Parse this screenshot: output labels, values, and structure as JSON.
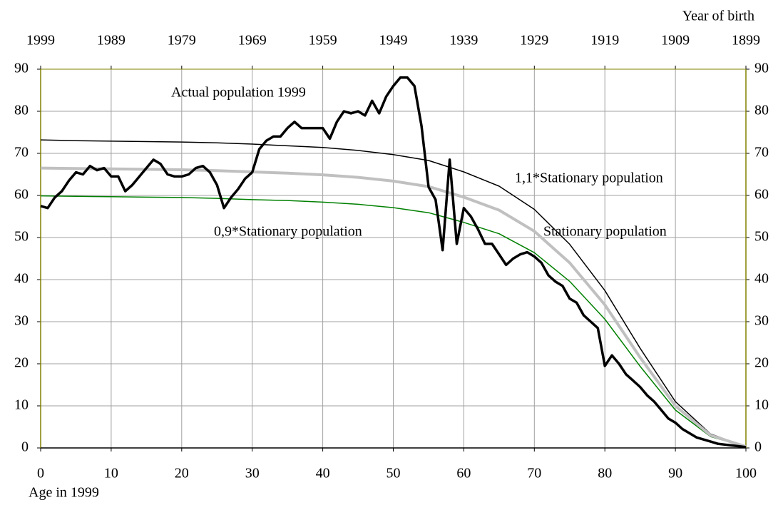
{
  "chart_data": {
    "type": "line",
    "x_label": "Age in 1999",
    "xlim": [
      0,
      100
    ],
    "ylim": [
      0,
      90
    ],
    "xticks": [
      0,
      10,
      20,
      30,
      40,
      50,
      60,
      70,
      80,
      90,
      100
    ],
    "yticks": [
      0,
      10,
      20,
      30,
      40,
      50,
      60,
      70,
      80,
      90
    ],
    "top_axis": {
      "title": "Year of birth",
      "ticks": [
        {
          "value": 0,
          "label": "1999"
        },
        {
          "value": 10,
          "label": "1989"
        },
        {
          "value": 20,
          "label": "1979"
        },
        {
          "value": 30,
          "label": "1969"
        },
        {
          "value": 40,
          "label": "1959"
        },
        {
          "value": 50,
          "label": "1949"
        },
        {
          "value": 60,
          "label": "1939"
        },
        {
          "value": 70,
          "label": "1929"
        },
        {
          "value": 80,
          "label": "1919"
        },
        {
          "value": 90,
          "label": "1909"
        },
        {
          "value": 100,
          "label": "1899"
        }
      ]
    },
    "grid": true,
    "annotations": [
      "Actual population 1999",
      "1,1*Stationary population",
      "0,9*Stationary population",
      "Stationary population"
    ],
    "series": [
      {
        "name": "1,1*Stationary population",
        "color": "#000000",
        "width": 1.5,
        "x": [
          0,
          5,
          10,
          15,
          20,
          25,
          30,
          35,
          40,
          45,
          50,
          55,
          60,
          65,
          70,
          75,
          80,
          85,
          90,
          95,
          100
        ],
        "values": [
          73.2,
          73.0,
          72.9,
          72.8,
          72.7,
          72.5,
          72.2,
          71.8,
          71.4,
          70.7,
          69.7,
          68.3,
          65.6,
          62.2,
          56.7,
          48.4,
          37.4,
          23.7,
          11.0,
          3.3,
          0.3
        ]
      },
      {
        "name": "0,9*Stationary population",
        "color": "#008000",
        "width": 1.5,
        "x": [
          0,
          5,
          10,
          15,
          20,
          25,
          30,
          35,
          40,
          45,
          50,
          55,
          60,
          65,
          70,
          75,
          80,
          85,
          90,
          95,
          100
        ],
        "values": [
          59.9,
          59.8,
          59.7,
          59.6,
          59.5,
          59.3,
          59.0,
          58.8,
          58.4,
          57.9,
          57.1,
          55.9,
          53.6,
          50.9,
          46.4,
          39.6,
          30.6,
          19.4,
          9.0,
          2.7,
          0.3
        ]
      },
      {
        "name": "Stationary population",
        "color": "#c0c0c0",
        "width": 4,
        "x": [
          0,
          5,
          10,
          15,
          20,
          25,
          30,
          35,
          40,
          45,
          50,
          55,
          60,
          65,
          70,
          75,
          80,
          85,
          90,
          95,
          100
        ],
        "values": [
          66.5,
          66.4,
          66.3,
          66.2,
          66.1,
          65.9,
          65.6,
          65.3,
          64.9,
          64.3,
          63.4,
          62.1,
          59.6,
          56.5,
          51.5,
          44.0,
          34.0,
          21.5,
          10.0,
          3.0,
          0.3
        ]
      },
      {
        "name": "Actual population 1999",
        "color": "#000000",
        "width": 3.5,
        "x": [
          0,
          1,
          2,
          3,
          4,
          5,
          6,
          7,
          8,
          9,
          10,
          11,
          12,
          13,
          14,
          15,
          16,
          17,
          18,
          19,
          20,
          21,
          22,
          23,
          24,
          25,
          26,
          27,
          28,
          29,
          30,
          31,
          32,
          33,
          34,
          35,
          36,
          37,
          38,
          39,
          40,
          41,
          42,
          43,
          44,
          45,
          46,
          47,
          48,
          49,
          50,
          51,
          52,
          53,
          54,
          55,
          56,
          57,
          58,
          59,
          60,
          61,
          62,
          63,
          64,
          65,
          66,
          67,
          68,
          69,
          70,
          71,
          72,
          73,
          74,
          75,
          76,
          77,
          78,
          79,
          80,
          81,
          82,
          83,
          84,
          85,
          86,
          87,
          88,
          89,
          90,
          91,
          92,
          93,
          94,
          95,
          96,
          97,
          98,
          99,
          100
        ],
        "values": [
          57.5,
          57,
          59.5,
          61,
          63.5,
          65.5,
          65,
          67,
          66,
          66.5,
          64.5,
          64.5,
          61,
          62.5,
          64.5,
          66.5,
          68.5,
          67.5,
          65,
          64.5,
          64.5,
          65,
          66.5,
          67,
          65.5,
          62.5,
          57,
          59.5,
          61.5,
          64,
          65.5,
          71,
          73,
          74,
          74,
          76,
          77.5,
          76,
          76,
          76,
          76,
          73.5,
          77.5,
          80,
          79.5,
          80,
          79,
          82.5,
          79.5,
          83.5,
          86,
          88,
          88,
          86,
          76.5,
          62,
          59,
          47,
          68.5,
          48.5,
          57,
          55,
          52,
          48.5,
          48.5,
          46,
          43.5,
          45,
          46,
          46.5,
          45.5,
          44,
          41,
          39.5,
          38.5,
          35.5,
          34.5,
          31.5,
          30,
          28.5,
          19.5,
          22,
          20,
          17.5,
          16,
          14.5,
          12.5,
          11,
          9,
          7,
          6,
          4.5,
          3.5,
          2.5,
          2,
          1.5,
          1,
          0.8,
          0.6,
          0.4,
          0.2
        ]
      }
    ]
  }
}
